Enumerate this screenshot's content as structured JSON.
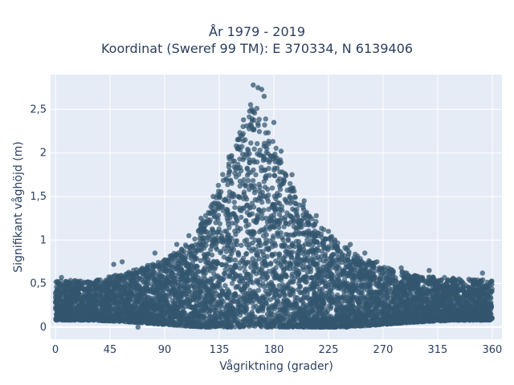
{
  "chart_data": {
    "type": "scatter",
    "title": "År 1979 - 2019",
    "subtitle": "Koordinat (Sweref 99 TM): E 370334, N 6139406",
    "xlabel": "Vågriktning (grader)",
    "ylabel": "Signifikant våghöjd (m)",
    "xlim": [
      -4,
      368
    ],
    "ylim": [
      -0.14,
      2.9
    ],
    "xticks": [
      0,
      45,
      90,
      135,
      180,
      225,
      270,
      315,
      360
    ],
    "xtick_labels": [
      "0",
      "45",
      "90",
      "135",
      "180",
      "225",
      "270",
      "315",
      "360"
    ],
    "yticks": [
      0,
      0.5,
      1,
      1.5,
      2,
      2.5
    ],
    "ytick_labels": [
      "0",
      "0,5",
      "1",
      "1,5",
      "2",
      "2,5"
    ],
    "grid": true,
    "marker_color": "#33566f",
    "background": "#e5ecf6",
    "envelope": {
      "x": [
        0,
        30,
        60,
        90,
        110,
        125,
        140,
        150,
        160,
        170,
        180,
        190,
        200,
        215,
        230,
        250,
        270,
        300,
        330,
        360
      ],
      "upper": [
        0.55,
        0.55,
        0.65,
        0.8,
        1.0,
        1.35,
        1.9,
        2.3,
        2.65,
        2.6,
        2.2,
        1.8,
        1.55,
        1.25,
        1.05,
        0.85,
        0.72,
        0.6,
        0.58,
        0.55
      ],
      "lower": [
        0.08,
        0.08,
        0.06,
        0.03,
        0.01,
        0.0,
        0.0,
        0.0,
        0.0,
        0.0,
        0.0,
        0.0,
        0.0,
        0.0,
        0.0,
        0.01,
        0.03,
        0.06,
        0.08,
        0.08
      ]
    },
    "sample_points": [
      {
        "x": 163,
        "y": 2.78
      },
      {
        "x": 167,
        "y": 2.75
      },
      {
        "x": 170,
        "y": 2.73
      },
      {
        "x": 172,
        "y": 2.65
      },
      {
        "x": 160,
        "y": 2.48
      },
      {
        "x": 155,
        "y": 2.38
      },
      {
        "x": 180,
        "y": 2.35
      },
      {
        "x": 186,
        "y": 2.02
      },
      {
        "x": 150,
        "y": 2.05
      },
      {
        "x": 145,
        "y": 1.95
      },
      {
        "x": 195,
        "y": 1.75
      },
      {
        "x": 205,
        "y": 1.45
      },
      {
        "x": 215,
        "y": 1.28
      },
      {
        "x": 225,
        "y": 1.1
      },
      {
        "x": 243,
        "y": 0.95
      },
      {
        "x": 255,
        "y": 0.85
      },
      {
        "x": 265,
        "y": 0.75
      },
      {
        "x": 285,
        "y": 0.68
      },
      {
        "x": 308,
        "y": 0.65
      },
      {
        "x": 352,
        "y": 0.62
      },
      {
        "x": 130,
        "y": 1.5
      },
      {
        "x": 120,
        "y": 1.25
      },
      {
        "x": 110,
        "y": 1.05
      },
      {
        "x": 100,
        "y": 0.95
      },
      {
        "x": 82,
        "y": 0.85
      },
      {
        "x": 55,
        "y": 0.75
      },
      {
        "x": 48,
        "y": 0.72
      },
      {
        "x": 5,
        "y": 0.57
      },
      {
        "x": 2,
        "y": 0.5
      },
      {
        "x": 68,
        "y": 0.0
      },
      {
        "x": 358,
        "y": 0.48
      },
      {
        "x": 240,
        "y": 0.0
      }
    ]
  }
}
